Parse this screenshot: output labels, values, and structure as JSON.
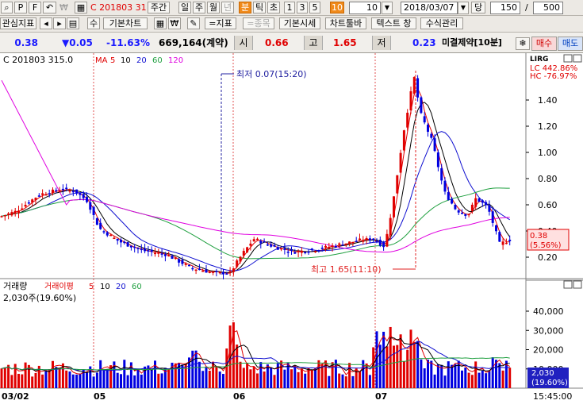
{
  "toolbar1": {
    "code": "C 201803 31",
    "period_btn": "주간",
    "periods": [
      "일",
      "주",
      "월",
      "년",
      "분",
      "틱",
      "초"
    ],
    "selected_period": "분",
    "intervals": [
      "1",
      "3",
      "5",
      "10"
    ],
    "selected_interval": "10",
    "interval_value": "10",
    "date": "2018/03/07",
    "date_label": "당",
    "count": "150",
    "slash": "/",
    "total": "500"
  },
  "toolbar2": {
    "interest": "관심지표",
    "su": "수",
    "basic_chart": "기본차트",
    "won": "₩",
    "indicator": "=지표",
    "item": "=종목",
    "basic_quote": "기본시세",
    "chart_toolbar": "차트툴바",
    "text_window": "텍스트 창",
    "formula_mgmt": "수식관리"
  },
  "quote": {
    "price": "0.38",
    "change": "▼0.05",
    "pct": "-11.63%",
    "volume": "669,164(계약)",
    "open_label": "시",
    "open": "0.66",
    "high_label": "고",
    "high": "1.65",
    "low_label": "저",
    "low": "0.23",
    "unfilled": "미결제약[10분]",
    "buy": "매수",
    "sell": "매도"
  },
  "price_panel": {
    "code_label": "C 201803  315.0",
    "ma_label": "MA",
    "ma_periods": [
      "5",
      "10",
      "20",
      "60",
      "120"
    ],
    "low_annotation": "최저  0.07(15:20)",
    "high_annotation": "최고  1.65(11:10)",
    "lc": "LC  442.86%",
    "hc": "HC  -76.97%",
    "current_price": "0.38",
    "current_pct": "(5.56%)",
    "y_ticks": [
      "1.40",
      "1.20",
      "1.00",
      "0.80",
      "0.60",
      "0.40",
      "0.20"
    ]
  },
  "volume_panel": {
    "title": "거래량",
    "vma_label": "거래이평",
    "vma_periods": [
      "5",
      "10",
      "20",
      "60"
    ],
    "current": "2,030주(19.60%)",
    "current_box": [
      "2,030",
      "(19.60%)"
    ],
    "y_ticks": [
      "40,000",
      "30,000",
      "20,000",
      "10,000"
    ]
  },
  "x_labels": [
    "03/02",
    "05",
    "06",
    "07"
  ],
  "time_label": "15:45:00",
  "colors": {
    "up": "#e00000",
    "down": "#0000e0",
    "ma5": "#e00000",
    "ma10": "#000000",
    "ma20": "#1010d0",
    "ma60": "#20a040",
    "ma120": "#e000e0"
  }
}
